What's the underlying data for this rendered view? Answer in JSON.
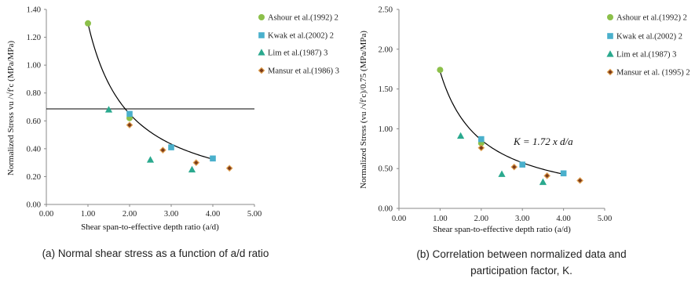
{
  "colors": {
    "ashour": "#8cc04a",
    "kwak": "#4ab0cc",
    "lim": "#2aa98e",
    "mansur_fill": "#7a3a1a",
    "mansur_edge": "#e0a050",
    "axis": "#888888",
    "curve": "#000000"
  },
  "chart_data": [
    {
      "type": "scatter",
      "caption": "(a) Normal shear stress as a function of a/d ratio",
      "xlabel": "Shear span-to-effective depth ratio  (a/d)",
      "ylabel": "Normalized Stress  vu /√f′c (MPa/MPa)",
      "xlim": [
        0,
        5
      ],
      "ylim": [
        0,
        1.4
      ],
      "xticks": [
        "0.00",
        "1.00",
        "2.00",
        "3.00",
        "4.00",
        "5.00"
      ],
      "yticks": [
        "0.00",
        "0.20",
        "0.40",
        "0.60",
        "0.80",
        "1.00",
        "1.20",
        "1.40"
      ],
      "grid": false,
      "legend_position": "right",
      "hline": 0.685,
      "curve": {
        "type": "power",
        "coefficient": 1.3,
        "exponent": -1,
        "x_range": [
          1.0,
          4.0
        ]
      },
      "series": [
        {
          "name": "Ashour et al.(1992) 2",
          "marker": "circle",
          "color_key": "ashour",
          "points": [
            [
              1.0,
              1.3
            ],
            [
              2.0,
              0.62
            ]
          ]
        },
        {
          "name": "Kwak et al.(2002) 2",
          "marker": "square",
          "color_key": "kwak",
          "points": [
            [
              2.0,
              0.65
            ],
            [
              3.0,
              0.41
            ],
            [
              4.0,
              0.33
            ]
          ]
        },
        {
          "name": "Lim et al.(1987) 3",
          "marker": "triangle",
          "color_key": "lim",
          "points": [
            [
              1.5,
              0.68
            ],
            [
              2.5,
              0.32
            ],
            [
              3.5,
              0.25
            ]
          ]
        },
        {
          "name": "Mansur et al.(1986) 3",
          "marker": "diamond",
          "color_key": "mansur_fill",
          "points": [
            [
              2.0,
              0.57
            ],
            [
              2.8,
              0.39
            ],
            [
              3.6,
              0.3
            ],
            [
              4.4,
              0.26
            ]
          ]
        }
      ]
    },
    {
      "type": "scatter",
      "caption_line1": "(b) Correlation between normalized data and",
      "caption_line2": "participation factor, K.",
      "xlabel": "Shear span-to-effective depth ratio  (a/d)",
      "ylabel": "Normalized Stress  (vu /√f′c)/0.75 (MPa/MPa)",
      "xlim": [
        0,
        5
      ],
      "ylim": [
        0,
        2.5
      ],
      "xticks": [
        "0.00",
        "1.00",
        "2.00",
        "3.00",
        "4.00",
        "5.00"
      ],
      "yticks": [
        "0.00",
        "0.50",
        "1.00",
        "1.50",
        "2.00",
        "2.50"
      ],
      "grid": false,
      "legend_position": "right",
      "annotation": "K = 1.72 x d/a",
      "curve": {
        "type": "power",
        "coefficient": 1.72,
        "exponent": -1,
        "x_range": [
          1.0,
          4.0
        ]
      },
      "series": [
        {
          "name": "Ashour et al.(1992) 2",
          "marker": "circle",
          "color_key": "ashour",
          "points": [
            [
              1.0,
              1.74
            ],
            [
              2.0,
              0.82
            ]
          ]
        },
        {
          "name": "Kwak et al.(2002) 2",
          "marker": "square",
          "color_key": "kwak",
          "points": [
            [
              2.0,
              0.87
            ],
            [
              3.0,
              0.55
            ],
            [
              4.0,
              0.44
            ]
          ]
        },
        {
          "name": "Lim et al.(1987) 3",
          "marker": "triangle",
          "color_key": "lim",
          "points": [
            [
              1.5,
              0.91
            ],
            [
              2.5,
              0.43
            ],
            [
              3.5,
              0.33
            ]
          ]
        },
        {
          "name": "Mansur et al. (1995) 2",
          "marker": "diamond",
          "color_key": "mansur_fill",
          "points": [
            [
              2.0,
              0.76
            ],
            [
              2.8,
              0.52
            ],
            [
              3.6,
              0.41
            ],
            [
              4.4,
              0.35
            ]
          ]
        }
      ]
    }
  ]
}
